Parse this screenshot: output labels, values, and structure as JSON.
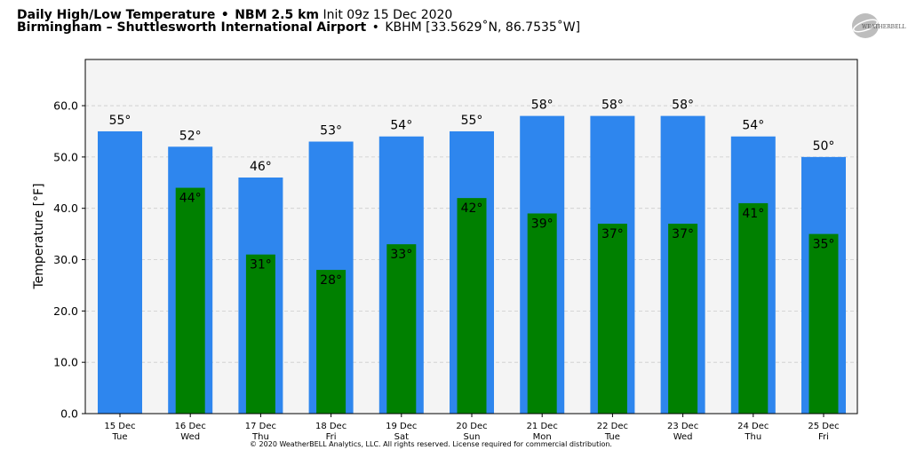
{
  "header": {
    "product": "Daily High/Low Temperature",
    "bullet": "•",
    "model": "NBM 2.5 km",
    "init": "Init 09z 15 Dec 2020",
    "station_name": "Birmingham – Shuttlesworth International Airport",
    "station_info": "KBHM [33.5629˚N, 86.7535˚W]"
  },
  "logo": {
    "text": "WEATHERBELL",
    "icon": "weatherbell-logo-icon"
  },
  "copyright": "© 2020 WeatherBELL Analytics, LLC. All rights reserved. License required for commercial distribution.",
  "colors": {
    "high": "#2e86ee",
    "low": "#008000",
    "plot_bg": "#f4f4f4",
    "grid": "#cccccc"
  },
  "chart_data": {
    "type": "bar",
    "ylabel": "Temperature [°F]",
    "ylim": [
      0,
      69
    ],
    "yticks": [
      "0.0",
      "10.0",
      "20.0",
      "30.0",
      "40.0",
      "50.0",
      "60.0"
    ],
    "grid": true,
    "categories": [
      [
        "15 Dec",
        "Tue"
      ],
      [
        "16 Dec",
        "Wed"
      ],
      [
        "17 Dec",
        "Thu"
      ],
      [
        "18 Dec",
        "Fri"
      ],
      [
        "19 Dec",
        "Sat"
      ],
      [
        "20 Dec",
        "Sun"
      ],
      [
        "21 Dec",
        "Mon"
      ],
      [
        "22 Dec",
        "Tue"
      ],
      [
        "23 Dec",
        "Wed"
      ],
      [
        "24 Dec",
        "Thu"
      ],
      [
        "25 Dec",
        "Fri"
      ]
    ],
    "series": [
      {
        "key": "high",
        "values": [
          55,
          52,
          46,
          53,
          54,
          55,
          58,
          58,
          58,
          54,
          50
        ],
        "labels": [
          "55°",
          "52°",
          "46°",
          "53°",
          "54°",
          "55°",
          "58°",
          "58°",
          "58°",
          "54°",
          "50°"
        ]
      },
      {
        "key": "low",
        "values": [
          null,
          44,
          31,
          28,
          33,
          42,
          39,
          37,
          37,
          41,
          35
        ],
        "labels": [
          null,
          "44°",
          "31°",
          "28°",
          "33°",
          "42°",
          "39°",
          "37°",
          "37°",
          "41°",
          "35°"
        ]
      }
    ]
  }
}
